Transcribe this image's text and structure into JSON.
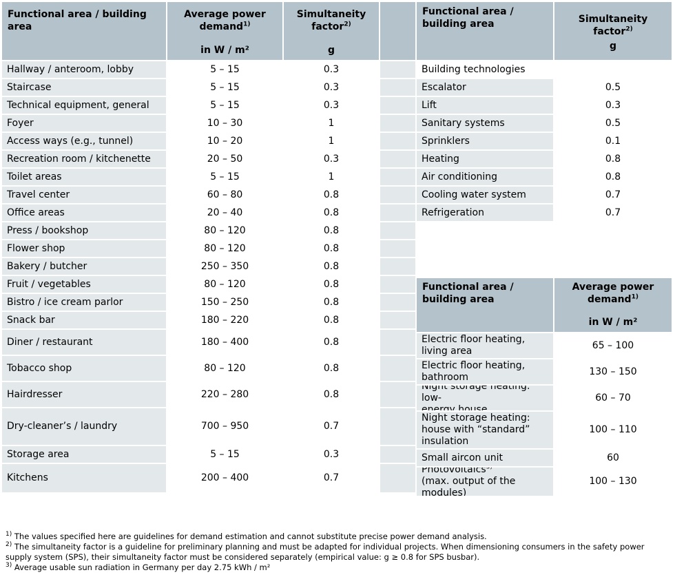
{
  "left_table": {
    "headers": {
      "area": "Functional area / building area",
      "power": "Average power demand",
      "power_note": "1)",
      "power_unit": "in W / m²",
      "factor": "Simultaneity factor",
      "factor_note": "2)",
      "factor_unit": "g"
    },
    "rows": [
      {
        "area": "Hallway / anteroom, lobby",
        "power": "5 – 15",
        "factor": "0.3"
      },
      {
        "area": "Staircase",
        "power": "5 – 15",
        "factor": "0.3"
      },
      {
        "area": "Technical equipment, general",
        "power": "5 – 15",
        "factor": "0.3"
      },
      {
        "area": "Foyer",
        "power": "10 – 30",
        "factor": "1"
      },
      {
        "area": "Access ways (e.g., tunnel)",
        "power": "10 – 20",
        "factor": "1"
      },
      {
        "area": "Recreation room / kitchenette",
        "power": "20 – 50",
        "factor": "0.3"
      },
      {
        "area": "Toilet areas",
        "power": "5 – 15",
        "factor": "1"
      },
      {
        "area": "Travel center",
        "power": "60 – 80",
        "factor": "0.8"
      },
      {
        "area": "Office areas",
        "power": "20 – 40",
        "factor": "0.8"
      },
      {
        "area": "Press / bookshop",
        "power": "80 – 120",
        "factor": "0.8"
      },
      {
        "area": "Flower shop",
        "power": "80 – 120",
        "factor": "0.8"
      },
      {
        "area": "Bakery / butcher",
        "power": "250 – 350",
        "factor": "0.8"
      },
      {
        "area": "Fruit / vegetables",
        "power": "80 – 120",
        "factor": "0.8"
      },
      {
        "area": "Bistro / ice cream parlor",
        "power": "150 – 250",
        "factor": "0.8"
      },
      {
        "area": "Snack bar",
        "power": "180 – 220",
        "factor": "0.8"
      },
      {
        "area": "Diner / restaurant",
        "power": "180 – 400",
        "factor": "0.8"
      },
      {
        "area": "Tobacco shop",
        "power": "80 – 120",
        "factor": "0.8"
      },
      {
        "area": "Hairdresser",
        "power": "220 – 280",
        "factor": "0.8"
      },
      {
        "area": "Dry-cleaner’s / laundry",
        "power": "700 – 950",
        "factor": "0.7"
      },
      {
        "area": "Storage area",
        "power": "5 – 15",
        "factor": "0.3"
      },
      {
        "area": "Kitchens",
        "power": "200 – 400",
        "factor": "0.7"
      }
    ]
  },
  "right_top_table": {
    "headers": {
      "area": "Functional area / building area",
      "factor": "Simultaneity factor",
      "factor_note": "2)",
      "factor_unit": "g"
    },
    "section_title": "Building technologies",
    "rows": [
      {
        "area": "Escalator",
        "factor": "0.5"
      },
      {
        "area": "Lift",
        "factor": "0.3"
      },
      {
        "area": "Sanitary systems",
        "factor": "0.5"
      },
      {
        "area": "Sprinklers",
        "factor": "0.1"
      },
      {
        "area": "Heating",
        "factor": "0.8"
      },
      {
        "area": "Air conditioning",
        "factor": "0.8"
      },
      {
        "area": "Cooling water system",
        "factor": "0.7"
      },
      {
        "area": "Refrigeration",
        "factor": "0.7"
      }
    ]
  },
  "right_bottom_table": {
    "headers": {
      "area": "Functional area / building area",
      "power": "Average power demand",
      "power_note": "1)",
      "power_unit": "in W / m²"
    },
    "rows": [
      {
        "area": "Electric floor heating,\nliving area",
        "power": "65 – 100"
      },
      {
        "area": "Electric floor heating,\nbathroom",
        "power": "130 – 150"
      },
      {
        "area": "Night storage heating: low-\nenergy house",
        "power": "60 – 70"
      },
      {
        "area": "Night storage heating:\nhouse with “standard”\ninsulation",
        "power": "100 – 110"
      },
      {
        "area": "Small aircon unit",
        "power": "60"
      },
      {
        "area": "Photovoltaics",
        "area_note": "3)",
        "area_rest": "(max. output of the\nmodules)",
        "power": "100 – 130"
      }
    ]
  },
  "footnotes": [
    {
      "mark": "1)",
      "text": "The values specified here are guidelines for demand estimation and cannot substitute precise power demand analysis."
    },
    {
      "mark": "2)",
      "text": "The simultaneity factor is a guideline for preliminary planning and must be adapted for individual projects. When dimensioning consumers in the safety power supply system (SPS), their simultaneity factor must be considered separately (empirical value: g ≥ 0.8 for SPS busbar)."
    },
    {
      "mark": "3)",
      "text": "Average usable sun radiation in Germany per day 2.75 kWh / m²"
    }
  ],
  "colors": {
    "header": "#b4c3cb",
    "shade": "#e3e8eb"
  }
}
